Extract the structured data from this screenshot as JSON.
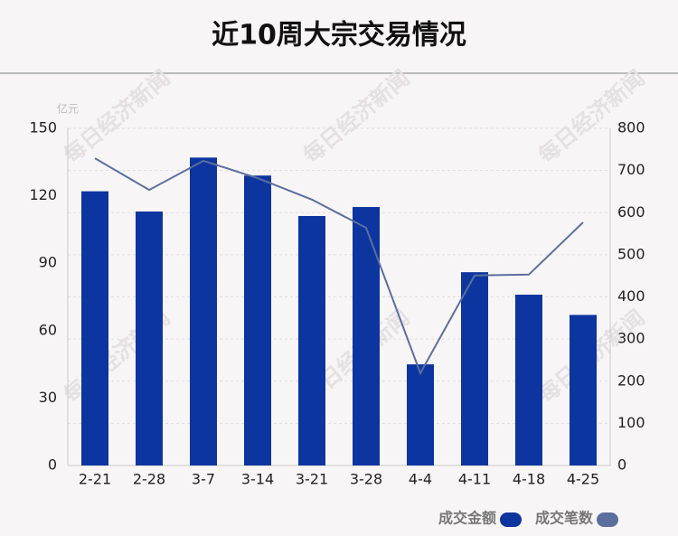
{
  "chart_data": {
    "type": "bar-line",
    "title": "近10周大宗交易情况",
    "y_unit": "亿元",
    "watermark": "每日经济新闻",
    "categories": [
      "2-21",
      "2-28",
      "3-7",
      "3-14",
      "3-21",
      "3-28",
      "4-4",
      "4-11",
      "4-18",
      "4-25"
    ],
    "series": [
      {
        "name": "成交金额",
        "type": "bar",
        "color": "#0d35a0",
        "values": [
          122,
          113,
          137,
          129,
          111,
          115,
          45,
          86,
          76,
          67
        ]
      },
      {
        "name": "成交笔数",
        "type": "line",
        "axis": "y2",
        "color": "#5b6f9e",
        "values": [
          729,
          654,
          723,
          682,
          631,
          564,
          219,
          451,
          453,
          577
        ]
      }
    ],
    "ylim": [
      0,
      150
    ],
    "yticks": [
      0,
      30,
      60,
      90,
      120,
      150
    ],
    "y2lim": [
      0,
      800
    ],
    "y2ticks": [
      0,
      100,
      200,
      300,
      400,
      500,
      600,
      700,
      800
    ],
    "grid": true,
    "legend": "bottom-right"
  }
}
